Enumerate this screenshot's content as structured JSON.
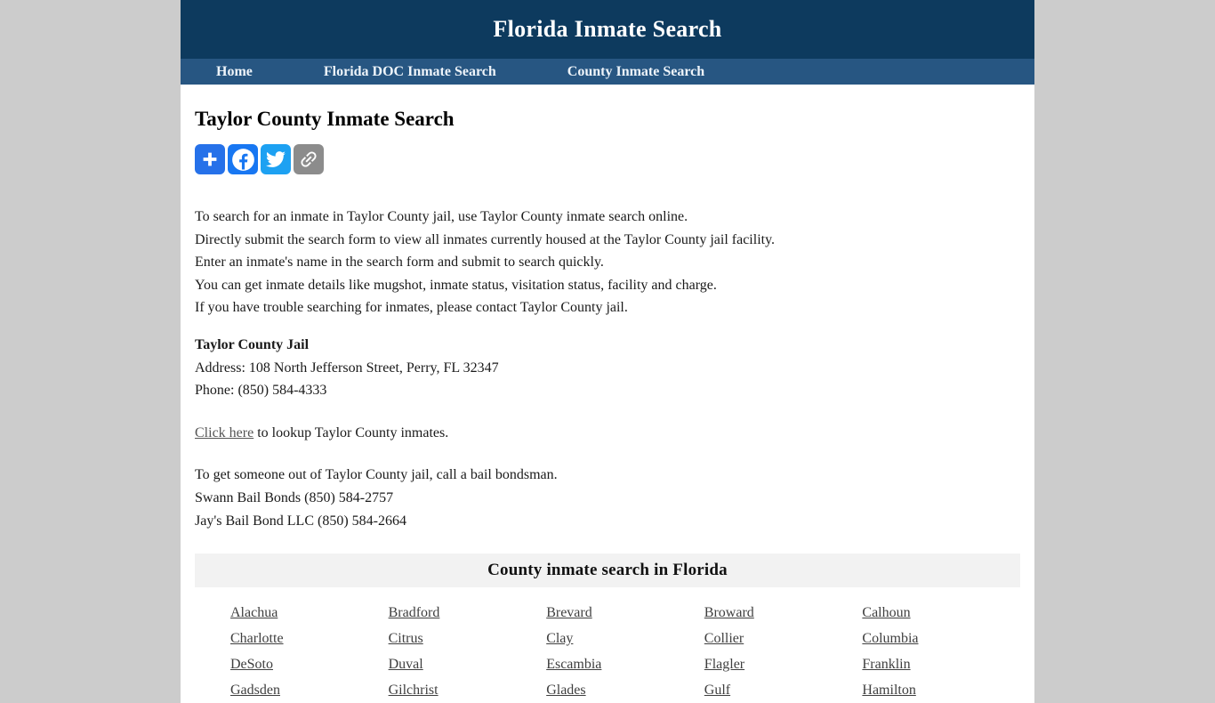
{
  "page_bg": "#cccccc",
  "header": {
    "title": "Florida Inmate Search",
    "bg": "#0d3a5e"
  },
  "nav": {
    "bg": "#275682",
    "items": [
      {
        "label": "Home"
      },
      {
        "label": "Florida DOC Inmate Search"
      },
      {
        "label": "County Inmate Search"
      }
    ]
  },
  "main": {
    "page_title": "Taylor County Inmate Search",
    "share": {
      "buttons": [
        {
          "name": "share-plus",
          "color": "#2671e9"
        },
        {
          "name": "facebook",
          "color": "#1877f2"
        },
        {
          "name": "twitter",
          "color": "#1da1f2"
        },
        {
          "name": "copy-link",
          "color": "#8c8c8c"
        }
      ]
    },
    "intro_lines": [
      "To search for an inmate in Taylor County jail, use Taylor County inmate search online.",
      "Directly submit the search form to view all inmates currently housed at the Taylor County jail facility.",
      "Enter an inmate's name in the search form and submit to search quickly.",
      "You can get inmate details like mugshot, inmate status, visitation status, facility and charge.",
      "If you have trouble searching for inmates, please contact Taylor County jail."
    ],
    "jail": {
      "name": "Taylor County Jail",
      "address": "Address: 108 North Jefferson Street, Perry, FL 32347",
      "phone": "Phone: (850) 584-4333"
    },
    "lookup": {
      "link_text": "Click here",
      "rest": " to lookup Taylor County inmates."
    },
    "bail_lines": [
      "To get someone out of Taylor County jail, call a bail bondsman.",
      "Swann Bail Bonds (850) 584-2757",
      "Jay's Bail Bond LLC (850) 584-2664"
    ],
    "county_section": {
      "title": "County inmate search in Florida",
      "counties": [
        "Alachua",
        "Bradford",
        "Brevard",
        "Broward",
        "Calhoun",
        "Charlotte",
        "Citrus",
        "Clay",
        "Collier",
        "Columbia",
        "DeSoto",
        "Duval",
        "Escambia",
        "Flagler",
        "Franklin",
        "Gadsden",
        "Gilchrist",
        "Glades",
        "Gulf",
        "Hamilton"
      ]
    }
  }
}
